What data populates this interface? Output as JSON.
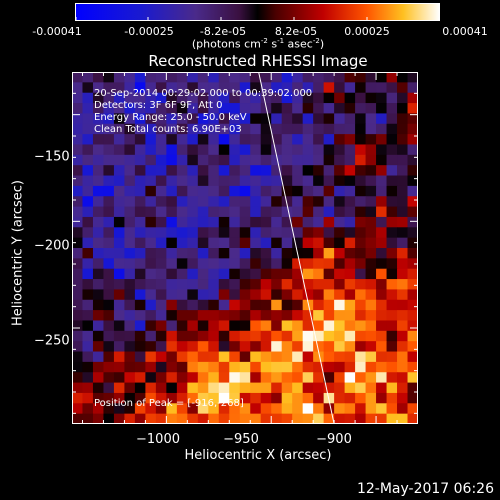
{
  "colorbar": {
    "tick_labels": [
      "-0.00041",
      "-0.00025",
      "-8.2e-05",
      "8.2e-05",
      "0.00025",
      "0.00041"
    ],
    "units_prefix": "(photons cm",
    "units_sup1": "-2",
    "units_mid1": " s",
    "units_sup2": "-1",
    "units_mid2": " asec",
    "units_sup3": "-2",
    "units_suffix": ")"
  },
  "title": "Reconstructed RHESSI Image",
  "info": {
    "line1": "20-Sep-2014 00:29:02.000 to 00:39:02.000",
    "line2": "Detectors: 3F 6F 9F, Att 0",
    "line3": "Energy Range: 25.0 - 50.0 keV",
    "line4": "Clean     Total counts: 6.90E+03"
  },
  "peak_label": "Position of Peak = [-916,-268]",
  "date_stamp": "12-May-2017 06:26",
  "chart_data": {
    "type": "heatmap",
    "title": "Reconstructed RHESSI Image",
    "xlabel": "Heliocentric X (arcsec)",
    "ylabel": "Heliocentric Y (arcsec)",
    "xlim": [
      -1045,
      -880
    ],
    "ylim": [
      -295,
      -130
    ],
    "x_ticks": [
      -1000,
      -950,
      -900
    ],
    "x_tick_labels": [
      "−1000",
      "−950",
      "−900"
    ],
    "y_ticks": [
      -150,
      -200,
      -250
    ],
    "y_tick_labels": [
      "−150",
      "−200",
      "−250"
    ],
    "color_range": [
      -0.00041,
      0.00041
    ],
    "colormap": "blue-black-red-yellow-white",
    "limb_line": [
      [
        -956,
        -130
      ],
      [
        -920,
        -295
      ]
    ],
    "peak_position": [
      -916,
      -268
    ],
    "grid_cols": 33,
    "grid_rows": 34
  }
}
